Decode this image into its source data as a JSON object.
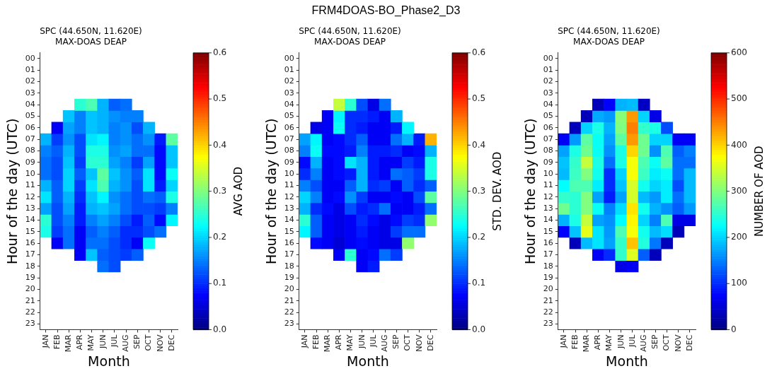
{
  "chart_data": [
    {
      "type": "heatmap",
      "title": "SPC (44.650N, 11.620E)",
      "subtitle": "MAX-DOAS DEAP",
      "annotations": [
        "FRM4DOAS-BO_Phase2_D3"
      ],
      "xlabel": "Month",
      "ylabel": "Hour of the day (UTC)",
      "clabel": "AVG AOD",
      "categories": [
        "JAN",
        "FEB",
        "MAR",
        "APR",
        "MAY",
        "JUN",
        "JUL",
        "AUG",
        "SEP",
        "OCT",
        "NOV",
        "DEC"
      ],
      "y_categories": [
        "00",
        "01",
        "02",
        "03",
        "04",
        "05",
        "06",
        "07",
        "08",
        "09",
        "10",
        "11",
        "12",
        "13",
        "14",
        "15",
        "16",
        "17",
        "18",
        "19",
        "20",
        "21",
        "22",
        "23"
      ],
      "clim": [
        0,
        0.6
      ],
      "cticks": [
        {
          "value": 0,
          "label": "0.0"
        },
        0.1,
        0.2,
        0.3,
        0.4,
        0.5,
        0.6
      ],
      "cells": [
        [
          null,
          null,
          null,
          null,
          null,
          null,
          null,
          null,
          null,
          null,
          null,
          null
        ],
        [
          null,
          null,
          null,
          null,
          null,
          null,
          null,
          null,
          null,
          null,
          null,
          null
        ],
        [
          null,
          null,
          null,
          null,
          null,
          null,
          null,
          null,
          null,
          null,
          null,
          null
        ],
        [
          null,
          null,
          null,
          null,
          null,
          null,
          null,
          null,
          null,
          null,
          null,
          null
        ],
        [
          null,
          null,
          null,
          0.25,
          0.27,
          0.18,
          0.13,
          0.14,
          null,
          null,
          null,
          null
        ],
        [
          null,
          null,
          0.19,
          0.15,
          0.19,
          0.18,
          0.16,
          0.15,
          0.15,
          null,
          null,
          null
        ],
        [
          null,
          0.07,
          0.17,
          0.15,
          0.19,
          0.18,
          0.15,
          0.16,
          0.12,
          0.18,
          null,
          null
        ],
        [
          0.18,
          0.11,
          0.16,
          0.12,
          0.21,
          0.22,
          0.15,
          0.16,
          0.14,
          0.16,
          0.09,
          0.28
        ],
        [
          0.15,
          0.13,
          0.18,
          0.12,
          0.24,
          0.24,
          0.16,
          0.17,
          0.14,
          0.14,
          0.08,
          0.19
        ],
        [
          0.14,
          0.12,
          0.19,
          0.11,
          0.25,
          0.25,
          0.17,
          0.15,
          0.11,
          0.17,
          0.08,
          0.19
        ],
        [
          0.14,
          0.12,
          0.2,
          0.13,
          0.19,
          0.28,
          0.19,
          0.16,
          0.13,
          0.21,
          0.08,
          0.23
        ],
        [
          0.18,
          0.13,
          0.2,
          0.11,
          0.21,
          0.27,
          0.18,
          0.16,
          0.12,
          0.21,
          0.09,
          0.2
        ],
        [
          0.21,
          0.13,
          0.18,
          0.1,
          0.19,
          0.22,
          0.16,
          0.14,
          0.12,
          0.14,
          0.13,
          0.24
        ],
        [
          0.17,
          0.12,
          0.17,
          0.09,
          0.18,
          0.19,
          0.17,
          0.14,
          0.12,
          0.12,
          0.11,
          0.15
        ],
        [
          0.25,
          0.12,
          0.15,
          0.09,
          0.15,
          0.17,
          0.15,
          0.12,
          0.09,
          0.13,
          0.08,
          0.22
        ],
        [
          0.24,
          0.11,
          0.14,
          0.07,
          0.13,
          0.15,
          0.13,
          0.1,
          0.1,
          0.12,
          0.14,
          null
        ],
        [
          null,
          0.07,
          0.14,
          0.07,
          0.14,
          0.14,
          0.12,
          0.1,
          0.07,
          0.23,
          null,
          null
        ],
        [
          null,
          null,
          null,
          0.07,
          0.19,
          0.13,
          0.12,
          0.11,
          0.13,
          null,
          null,
          null
        ],
        [
          null,
          null,
          null,
          null,
          null,
          0.14,
          0.12,
          null,
          null,
          null,
          null,
          null
        ],
        [
          null,
          null,
          null,
          null,
          null,
          null,
          null,
          null,
          null,
          null,
          null,
          null
        ],
        [
          null,
          null,
          null,
          null,
          null,
          null,
          null,
          null,
          null,
          null,
          null,
          null
        ],
        [
          null,
          null,
          null,
          null,
          null,
          null,
          null,
          null,
          null,
          null,
          null,
          null
        ],
        [
          null,
          null,
          null,
          null,
          null,
          null,
          null,
          null,
          null,
          null,
          null,
          null
        ],
        [
          null,
          null,
          null,
          null,
          null,
          null,
          null,
          null,
          null,
          null,
          null,
          null
        ]
      ]
    },
    {
      "type": "heatmap",
      "title": "SPC (44.650N, 11.620E)",
      "subtitle": "MAX-DOAS DEAP",
      "xlabel": "Month",
      "ylabel": "Hour of the day (UTC)",
      "clabel": "STD. DEV. AOD",
      "categories": [
        "JAN",
        "FEB",
        "MAR",
        "APR",
        "MAY",
        "JUN",
        "JUL",
        "AUG",
        "SEP",
        "OCT",
        "NOV",
        "DEC"
      ],
      "y_categories": [
        "00",
        "01",
        "02",
        "03",
        "04",
        "05",
        "06",
        "07",
        "08",
        "09",
        "10",
        "11",
        "12",
        "13",
        "14",
        "15",
        "16",
        "17",
        "18",
        "19",
        "20",
        "21",
        "22",
        "23"
      ],
      "clim": [
        0,
        0.6
      ],
      "cticks": [
        {
          "value": 0,
          "label": "0.0"
        },
        0.1,
        0.2,
        0.3,
        0.4,
        0.5,
        0.6
      ],
      "cells": [
        [
          null,
          null,
          null,
          null,
          null,
          null,
          null,
          null,
          null,
          null,
          null,
          null
        ],
        [
          null,
          null,
          null,
          null,
          null,
          null,
          null,
          null,
          null,
          null,
          null,
          null
        ],
        [
          null,
          null,
          null,
          null,
          null,
          null,
          null,
          null,
          null,
          null,
          null,
          null
        ],
        [
          null,
          null,
          null,
          null,
          null,
          null,
          null,
          null,
          null,
          null,
          null,
          null
        ],
        [
          null,
          null,
          null,
          0.34,
          0.25,
          0.12,
          0.06,
          0.14,
          null,
          null,
          null,
          null
        ],
        [
          null,
          null,
          0.07,
          0.22,
          0.1,
          0.1,
          0.09,
          0.07,
          0.18,
          null,
          null,
          null
        ],
        [
          null,
          0.06,
          0.07,
          0.23,
          0.1,
          0.09,
          0.07,
          0.07,
          0.09,
          0.22,
          null,
          null
        ],
        [
          0.17,
          0.22,
          0.07,
          0.08,
          0.1,
          0.13,
          0.07,
          0.07,
          0.14,
          0.18,
          0.09,
          0.42
        ],
        [
          0.15,
          0.23,
          0.08,
          0.08,
          0.09,
          0.15,
          0.09,
          0.09,
          0.1,
          0.07,
          0.08,
          0.18
        ],
        [
          0.08,
          0.18,
          0.07,
          0.08,
          0.21,
          0.18,
          0.09,
          0.07,
          0.07,
          0.11,
          0.09,
          0.24
        ],
        [
          0.1,
          0.15,
          0.07,
          0.08,
          0.09,
          0.18,
          0.09,
          0.07,
          0.14,
          0.13,
          0.11,
          0.24
        ],
        [
          0.15,
          0.12,
          0.07,
          0.07,
          0.13,
          0.18,
          0.1,
          0.11,
          0.07,
          0.13,
          0.1,
          0.13
        ],
        [
          0.2,
          0.15,
          0.07,
          0.08,
          0.16,
          0.11,
          0.07,
          0.07,
          0.08,
          0.07,
          0.12,
          0.28
        ],
        [
          0.18,
          0.1,
          0.08,
          0.06,
          0.12,
          0.09,
          0.1,
          0.14,
          0.07,
          0.07,
          0.09,
          0.14
        ],
        [
          0.25,
          0.13,
          0.07,
          0.06,
          0.07,
          0.1,
          0.08,
          0.06,
          0.08,
          0.11,
          0.1,
          0.31
        ],
        [
          0.22,
          0.13,
          0.07,
          0.06,
          0.07,
          0.09,
          0.07,
          0.06,
          0.11,
          0.14,
          0.14,
          null
        ],
        [
          null,
          0.08,
          0.07,
          0.05,
          0.07,
          0.08,
          0.07,
          0.06,
          0.06,
          0.31,
          null,
          null
        ],
        [
          null,
          null,
          null,
          0.07,
          0.25,
          0.07,
          0.08,
          0.14,
          0.11,
          null,
          null,
          null
        ],
        [
          null,
          null,
          null,
          null,
          null,
          0.07,
          0.09,
          null,
          null,
          null,
          null,
          null
        ],
        [
          null,
          null,
          null,
          null,
          null,
          null,
          null,
          null,
          null,
          null,
          null,
          null
        ],
        [
          null,
          null,
          null,
          null,
          null,
          null,
          null,
          null,
          null,
          null,
          null,
          null
        ],
        [
          null,
          null,
          null,
          null,
          null,
          null,
          null,
          null,
          null,
          null,
          null,
          null
        ],
        [
          null,
          null,
          null,
          null,
          null,
          null,
          null,
          null,
          null,
          null,
          null,
          null
        ],
        [
          null,
          null,
          null,
          null,
          null,
          null,
          null,
          null,
          null,
          null,
          null,
          null
        ]
      ]
    },
    {
      "type": "heatmap",
      "title": "SPC (44.650N, 11.620E)",
      "subtitle": "MAX-DOAS DEAP",
      "xlabel": "Month",
      "ylabel": "Hour of the day (UTC)",
      "clabel": "NUMBER OF AOD",
      "categories": [
        "JAN",
        "FEB",
        "MAR",
        "APR",
        "MAY",
        "JUN",
        "JUL",
        "AUG",
        "SEP",
        "OCT",
        "NOV",
        "DEC"
      ],
      "y_categories": [
        "00",
        "01",
        "02",
        "03",
        "04",
        "05",
        "06",
        "07",
        "08",
        "09",
        "10",
        "11",
        "12",
        "13",
        "14",
        "15",
        "16",
        "17",
        "18",
        "19",
        "20",
        "21",
        "22",
        "23"
      ],
      "clim": [
        0,
        600
      ],
      "cticks": [
        0,
        100,
        200,
        300,
        400,
        500,
        600
      ],
      "cells": [
        [
          null,
          null,
          null,
          null,
          null,
          null,
          null,
          null,
          null,
          null,
          null,
          null
        ],
        [
          null,
          null,
          null,
          null,
          null,
          null,
          null,
          null,
          null,
          null,
          null,
          null
        ],
        [
          null,
          null,
          null,
          null,
          null,
          null,
          null,
          null,
          null,
          null,
          null,
          null
        ],
        [
          null,
          null,
          null,
          null,
          null,
          null,
          null,
          null,
          null,
          null,
          null,
          null
        ],
        [
          null,
          null,
          null,
          35,
          75,
          180,
          185,
          40,
          null,
          null,
          null,
          null
        ],
        [
          null,
          null,
          35,
          175,
          165,
          305,
          435,
          200,
          60,
          null,
          null,
          null
        ],
        [
          null,
          35,
          200,
          240,
          180,
          300,
          450,
          255,
          240,
          120,
          null,
          null
        ],
        [
          70,
          165,
          280,
          230,
          170,
          280,
          435,
          290,
          200,
          200,
          70,
          70
        ],
        [
          170,
          240,
          290,
          230,
          160,
          240,
          400,
          290,
          160,
          270,
          130,
          150
        ],
        [
          190,
          255,
          340,
          240,
          140,
          240,
          370,
          270,
          230,
          280,
          140,
          140
        ],
        [
          185,
          260,
          300,
          235,
          100,
          200,
          370,
          260,
          215,
          230,
          140,
          185
        ],
        [
          225,
          270,
          270,
          215,
          100,
          190,
          350,
          235,
          200,
          215,
          120,
          185
        ],
        [
          255,
          250,
          300,
          170,
          90,
          170,
          350,
          185,
          165,
          215,
          140,
          185
        ],
        [
          290,
          250,
          300,
          230,
          150,
          205,
          390,
          235,
          180,
          160,
          130,
          165
        ],
        [
          180,
          240,
          340,
          170,
          160,
          225,
          380,
          200,
          150,
          270,
          60,
          60
        ],
        [
          75,
          190,
          360,
          210,
          165,
          270,
          370,
          235,
          185,
          205,
          35,
          null
        ],
        [
          null,
          35,
          185,
          210,
          170,
          255,
          410,
          245,
          145,
          35,
          null,
          null
        ],
        [
          null,
          null,
          null,
          70,
          100,
          255,
          355,
          130,
          35,
          null,
          null,
          null
        ],
        [
          null,
          null,
          null,
          null,
          null,
          60,
          70,
          null,
          null,
          null,
          null,
          null
        ],
        [
          null,
          null,
          null,
          null,
          null,
          null,
          null,
          null,
          null,
          null,
          null,
          null
        ],
        [
          null,
          null,
          null,
          null,
          null,
          null,
          null,
          null,
          null,
          null,
          null,
          null
        ],
        [
          null,
          null,
          null,
          null,
          null,
          null,
          null,
          null,
          null,
          null,
          null,
          null
        ],
        [
          null,
          null,
          null,
          null,
          null,
          null,
          null,
          null,
          null,
          null,
          null,
          null
        ],
        [
          null,
          null,
          null,
          null,
          null,
          null,
          null,
          null,
          null,
          null,
          null,
          null
        ]
      ]
    }
  ]
}
